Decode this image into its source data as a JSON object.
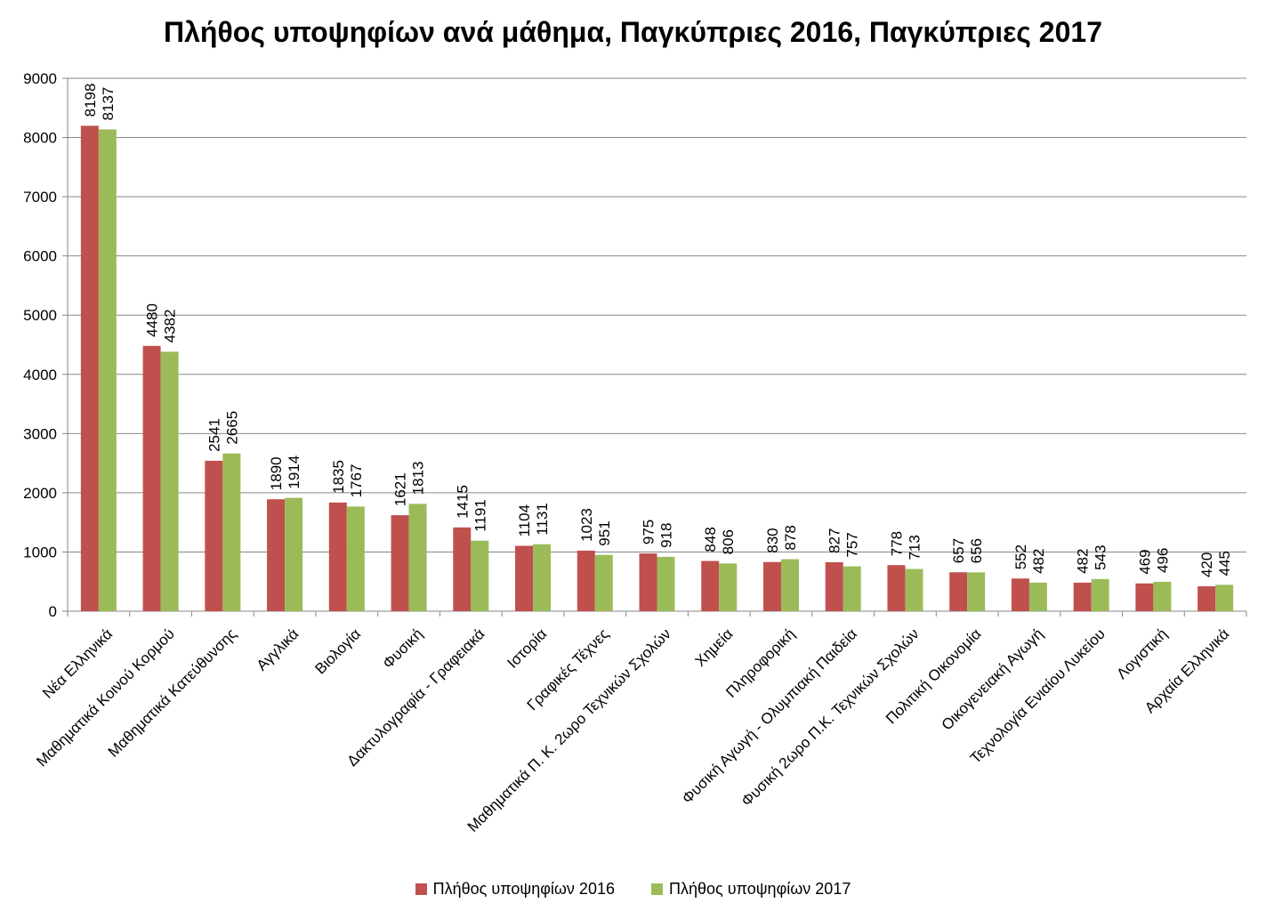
{
  "chart_data": {
    "type": "bar",
    "title": "Πλήθος υποψηφίων ανά μάθημα, Παγκύπριες 2016, Παγκύπριες 2017",
    "xlabel": "",
    "ylabel": "",
    "ylim": [
      0,
      9000
    ],
    "yticks": [
      0,
      1000,
      2000,
      3000,
      4000,
      5000,
      6000,
      7000,
      8000,
      9000
    ],
    "grid": true,
    "legend_position": "bottom",
    "categories": [
      "Νέα Ελληνικά",
      "Μαθηματικά Κοινού Κορμού",
      "Μαθηματικά Κατεύθυνσης",
      "Αγγλικά",
      "Βιολογία",
      "Φυσική",
      "Δακτυλογραφία - Γραφειακά",
      "Ιστορία",
      "Γραφικές Τέχνες",
      "Μαθηματικά Π. Κ. 2ωρο Τεχνικών Σχολών",
      "Χημεία",
      "Πληροφορική",
      "Φυσική Αγωγή - Ολυμπιακή Παιδεία",
      "Φυσική 2ωρο Π.Κ. Τεχνικών Σχολών",
      "Πολιτική Οικονομία",
      "Οικογενειακή Αγωγή",
      "Τεχνολογία Ενιαίου Λυκείου",
      "Λογιστική",
      "Αρχαία Ελληνικά"
    ],
    "series": [
      {
        "name": "Πλήθος υποψηφίων 2016",
        "color": "#C0504D",
        "values": [
          8198,
          4480,
          2541,
          1890,
          1835,
          1621,
          1415,
          1104,
          1023,
          975,
          848,
          830,
          827,
          778,
          657,
          552,
          482,
          469,
          420
        ]
      },
      {
        "name": "Πλήθος υποψηφίων 2017",
        "color": "#9BBB59",
        "values": [
          8137,
          4382,
          2665,
          1914,
          1767,
          1813,
          1191,
          1131,
          951,
          918,
          806,
          878,
          757,
          713,
          656,
          482,
          543,
          496,
          445
        ]
      }
    ]
  }
}
